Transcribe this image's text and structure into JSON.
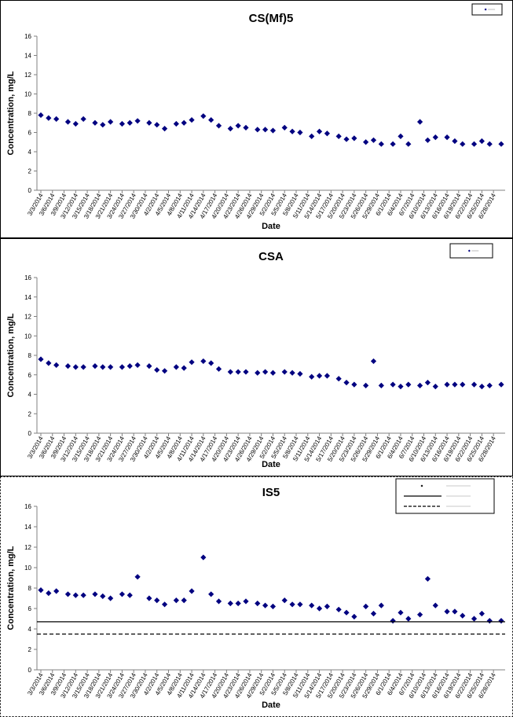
{
  "chart_data": [
    {
      "type": "scatter",
      "title": "CS(Mf)5",
      "xlabel": "Date",
      "ylabel": "Concentration, mg/L",
      "ylim": [
        0,
        16
      ],
      "yticks": [
        0,
        2,
        4,
        6,
        8,
        10,
        12,
        14,
        16
      ],
      "xticks": [
        "3/3/2014",
        "3/6/2014",
        "3/9/2014",
        "3/12/2014",
        "3/15/2014",
        "3/18/2014",
        "3/21/2014",
        "3/24/2014",
        "3/27/2014",
        "3/30/2014",
        "4/2/2014",
        "4/5/2014",
        "4/8/2014",
        "4/11/2014",
        "4/14/2014",
        "4/17/2014",
        "4/20/2014",
        "4/23/2014",
        "4/26/2014",
        "4/29/2014",
        "5/2/2014",
        "5/5/2014",
        "5/8/2014",
        "5/11/2014",
        "5/14/2014",
        "5/17/2014",
        "5/20/2014",
        "5/23/2014",
        "5/26/2014",
        "5/29/2014",
        "6/1/2014",
        "6/4/2014",
        "6/7/2014",
        "6/10/2014",
        "6/13/2014",
        "6/16/2014",
        "6/19/2014",
        "6/22/2014",
        "6/25/2014",
        "6/28/2014"
      ],
      "xlim": [
        "3/3/2014",
        "6/30/2014"
      ],
      "grid": false,
      "legend_position": "top-right",
      "marker_color": "#000080",
      "series": [
        {
          "x": [
            "3/3/2014",
            "3/5/2014",
            "3/7/2014",
            "3/10/2014",
            "3/12/2014",
            "3/14/2014",
            "3/17/2014",
            "3/19/2014",
            "3/21/2014",
            "3/24/2014",
            "3/26/2014",
            "3/28/2014",
            "3/31/2014",
            "4/2/2014",
            "4/4/2014",
            "4/7/2014",
            "4/9/2014",
            "4/11/2014",
            "4/14/2014",
            "4/16/2014",
            "4/18/2014",
            "4/21/2014",
            "4/23/2014",
            "4/25/2014",
            "4/28/2014",
            "4/30/2014",
            "5/2/2014",
            "5/5/2014",
            "5/7/2014",
            "5/9/2014",
            "5/12/2014",
            "5/14/2014",
            "5/16/2014",
            "5/19/2014",
            "5/21/2014",
            "5/23/2014",
            "5/26/2014",
            "5/28/2014",
            "5/30/2014",
            "6/2/2014",
            "6/4/2014",
            "6/6/2014",
            "6/9/2014",
            "6/11/2014",
            "6/13/2014",
            "6/16/2014",
            "6/18/2014",
            "6/20/2014",
            "6/23/2014",
            "6/25/2014",
            "6/27/2014",
            "6/30/2014"
          ],
          "y": [
            7.8,
            7.5,
            7.4,
            7.1,
            6.9,
            7.4,
            7.0,
            6.8,
            7.1,
            6.9,
            7.0,
            7.2,
            7.0,
            6.8,
            6.4,
            6.9,
            7.0,
            7.3,
            7.7,
            7.3,
            6.7,
            6.4,
            6.7,
            6.5,
            6.3,
            6.3,
            6.2,
            6.5,
            6.1,
            6.0,
            5.6,
            6.1,
            5.9,
            5.6,
            5.3,
            5.4,
            5.0,
            5.2,
            4.8,
            4.8,
            5.6,
            4.8,
            7.1,
            5.2,
            5.5,
            5.5,
            5.1,
            4.8,
            4.8,
            5.1,
            4.8,
            4.8
          ]
        }
      ]
    },
    {
      "type": "scatter",
      "title": "CSA",
      "xlabel": "Date",
      "ylabel": "Concentration, mg/L",
      "ylim": [
        0,
        16
      ],
      "yticks": [
        0,
        2,
        4,
        6,
        8,
        10,
        12,
        14,
        16
      ],
      "xticks": [
        "3/3/2014",
        "3/6/2014",
        "3/9/2014",
        "3/12/2014",
        "3/15/2014",
        "3/18/2014",
        "3/21/2014",
        "3/24/2014",
        "3/27/2014",
        "3/30/2014",
        "4/2/2014",
        "4/5/2014",
        "4/8/2014",
        "4/11/2014",
        "4/14/2014",
        "4/17/2014",
        "4/20/2014",
        "4/23/2014",
        "4/26/2014",
        "4/29/2014",
        "5/2/2014",
        "5/5/2014",
        "5/8/2014",
        "5/11/2014",
        "5/14/2014",
        "5/17/2014",
        "5/20/2014",
        "5/23/2014",
        "5/26/2014",
        "5/29/2014",
        "6/1/2014",
        "6/4/2014",
        "6/7/2014",
        "6/10/2014",
        "6/13/2014",
        "6/16/2014",
        "6/19/2014",
        "6/22/2014",
        "6/25/2014",
        "6/28/2014"
      ],
      "xlim": [
        "3/3/2014",
        "6/30/2014"
      ],
      "grid": false,
      "legend_position": "top-right",
      "marker_color": "#000080",
      "series": [
        {
          "x": [
            "3/3/2014",
            "3/5/2014",
            "3/7/2014",
            "3/10/2014",
            "3/12/2014",
            "3/14/2014",
            "3/17/2014",
            "3/19/2014",
            "3/21/2014",
            "3/24/2014",
            "3/26/2014",
            "3/28/2014",
            "3/31/2014",
            "4/2/2014",
            "4/4/2014",
            "4/7/2014",
            "4/9/2014",
            "4/11/2014",
            "4/14/2014",
            "4/16/2014",
            "4/18/2014",
            "4/21/2014",
            "4/23/2014",
            "4/25/2014",
            "4/28/2014",
            "4/30/2014",
            "5/2/2014",
            "5/5/2014",
            "5/7/2014",
            "5/9/2014",
            "5/12/2014",
            "5/14/2014",
            "5/16/2014",
            "5/19/2014",
            "5/21/2014",
            "5/23/2014",
            "5/26/2014",
            "5/28/2014",
            "5/30/2014",
            "6/2/2014",
            "6/4/2014",
            "6/6/2014",
            "6/9/2014",
            "6/11/2014",
            "6/13/2014",
            "6/16/2014",
            "6/18/2014",
            "6/20/2014",
            "6/23/2014",
            "6/25/2014",
            "6/27/2014",
            "6/30/2014"
          ],
          "y": [
            7.6,
            7.2,
            7.0,
            6.9,
            6.8,
            6.8,
            6.9,
            6.8,
            6.8,
            6.8,
            6.9,
            7.0,
            6.9,
            6.5,
            6.4,
            6.8,
            6.7,
            7.3,
            7.4,
            7.2,
            6.6,
            6.3,
            6.3,
            6.3,
            6.2,
            6.3,
            6.2,
            6.3,
            6.2,
            6.1,
            5.8,
            5.9,
            5.9,
            5.6,
            5.2,
            5.0,
            4.9,
            7.4,
            4.9,
            5.0,
            4.8,
            5.0,
            4.9,
            5.2,
            4.8,
            5.0,
            5.0,
            5.0,
            5.0,
            4.8,
            4.9,
            5.0
          ]
        }
      ]
    },
    {
      "type": "scatter",
      "title": "IS5",
      "xlabel": "Date",
      "ylabel": "Concentration, mg/L",
      "ylim": [
        0,
        16
      ],
      "yticks": [
        0,
        2,
        4,
        6,
        8,
        10,
        12,
        14,
        16
      ],
      "xticks": [
        "3/3/2014",
        "3/6/2014",
        "3/9/2014",
        "3/12/2014",
        "3/15/2014",
        "3/18/2014",
        "3/21/2014",
        "3/24/2014",
        "3/27/2014",
        "3/30/2014",
        "4/2/2014",
        "4/5/2014",
        "4/8/2014",
        "4/11/2014",
        "4/14/2014",
        "4/17/2014",
        "4/20/2014",
        "4/23/2014",
        "4/26/2014",
        "4/29/2014",
        "5/2/2014",
        "5/5/2014",
        "5/8/2014",
        "5/11/2014",
        "5/14/2014",
        "5/17/2014",
        "5/20/2014",
        "5/23/2014",
        "5/26/2014",
        "5/29/2014",
        "6/1/2014",
        "6/4/2014",
        "6/7/2014",
        "6/10/2014",
        "6/13/2014",
        "6/16/2014",
        "6/19/2014",
        "6/22/2014",
        "6/25/2014",
        "6/28/2014"
      ],
      "xlim": [
        "3/3/2014",
        "6/30/2014"
      ],
      "grid": false,
      "legend_position": "top-right",
      "marker_color": "#000080",
      "series": [
        {
          "x": [
            "3/3/2014",
            "3/5/2014",
            "3/7/2014",
            "3/10/2014",
            "3/12/2014",
            "3/14/2014",
            "3/17/2014",
            "3/19/2014",
            "3/21/2014",
            "3/24/2014",
            "3/26/2014",
            "3/28/2014",
            "3/31/2014",
            "4/2/2014",
            "4/4/2014",
            "4/7/2014",
            "4/9/2014",
            "4/11/2014",
            "4/14/2014",
            "4/16/2014",
            "4/18/2014",
            "4/21/2014",
            "4/23/2014",
            "4/25/2014",
            "4/28/2014",
            "4/30/2014",
            "5/2/2014",
            "5/5/2014",
            "5/7/2014",
            "5/9/2014",
            "5/12/2014",
            "5/14/2014",
            "5/16/2014",
            "5/19/2014",
            "5/21/2014",
            "5/23/2014",
            "5/26/2014",
            "5/28/2014",
            "5/30/2014",
            "6/2/2014",
            "6/4/2014",
            "6/6/2014",
            "6/9/2014",
            "6/11/2014",
            "6/13/2014",
            "6/16/2014",
            "6/18/2014",
            "6/20/2014",
            "6/23/2014",
            "6/25/2014",
            "6/27/2014",
            "6/30/2014"
          ],
          "y": [
            7.8,
            7.5,
            7.7,
            7.4,
            7.3,
            7.3,
            7.4,
            7.2,
            7.0,
            7.4,
            7.3,
            9.1,
            7.0,
            6.8,
            6.4,
            6.8,
            6.8,
            7.7,
            11.0,
            7.4,
            6.7,
            6.5,
            6.5,
            6.7,
            6.5,
            6.3,
            6.2,
            6.8,
            6.4,
            6.4,
            6.3,
            6.0,
            6.2,
            5.9,
            5.6,
            5.2,
            6.2,
            5.5,
            6.3,
            4.8,
            5.6,
            5.0,
            5.4,
            8.9,
            6.3,
            5.7,
            5.7,
            5.3,
            5.0,
            5.5,
            4.8,
            4.8
          ]
        },
        {
          "type": "hline",
          "y": 4.7,
          "style": "solid",
          "color": "#000000"
        },
        {
          "type": "hline",
          "y": 3.5,
          "style": "dashed",
          "color": "#000000"
        }
      ]
    }
  ]
}
